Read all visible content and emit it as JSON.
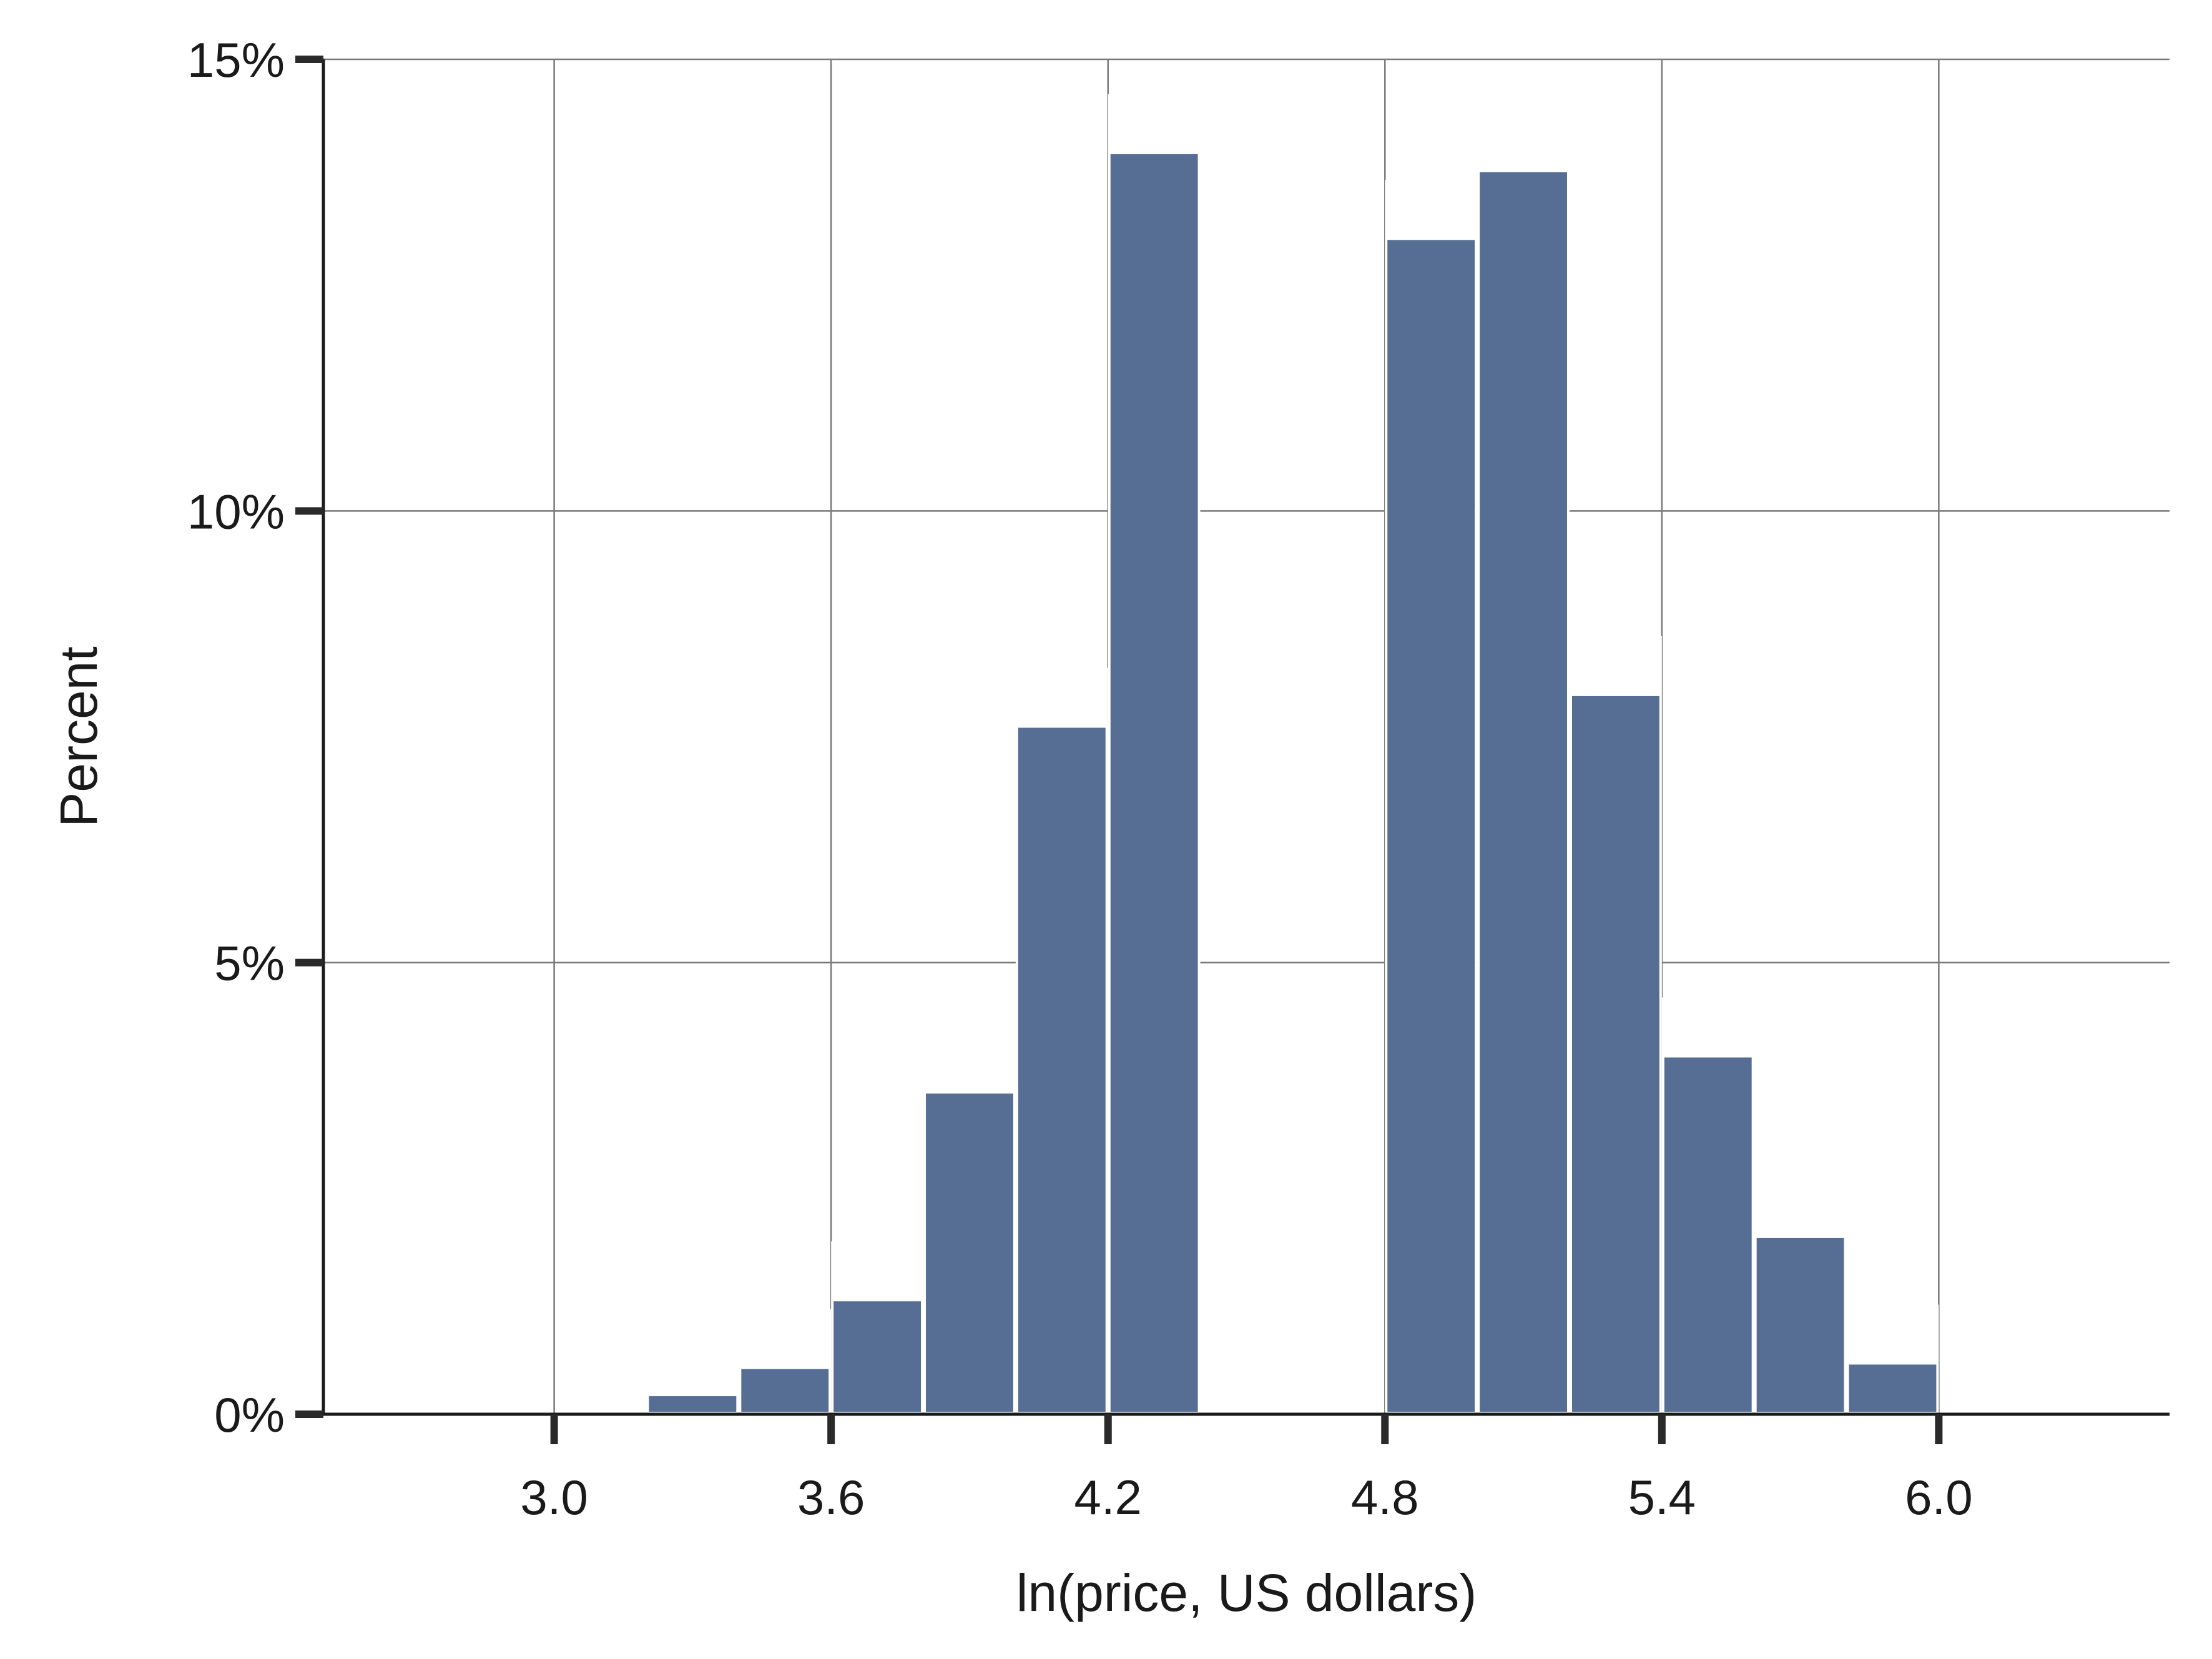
{
  "chart_data": {
    "type": "bar",
    "xlabel": "ln(price, US dollars)",
    "ylabel": "Percent",
    "xlim": [
      2.5,
      6.5
    ],
    "ylim": [
      0,
      15
    ],
    "x_ticks": [
      3.0,
      3.6,
      4.2,
      4.8,
      5.4,
      6.0
    ],
    "x_tick_labels": [
      "3.0",
      "3.6",
      "4.2",
      "4.8",
      "5.4",
      "6.0"
    ],
    "y_ticks": [
      0,
      5,
      10,
      15
    ],
    "y_tick_labels": [
      "0%",
      "5%",
      "10%",
      "15%"
    ],
    "bin_width": 0.2,
    "bins": [
      {
        "x0": 3.2,
        "x1": 3.4,
        "value": 0.2
      },
      {
        "x0": 3.4,
        "x1": 3.6,
        "value": 0.5
      },
      {
        "x0": 3.6,
        "x1": 3.8,
        "value": 1.25
      },
      {
        "x0": 3.8,
        "x1": 4.0,
        "value": 3.55
      },
      {
        "x0": 4.0,
        "x1": 4.2,
        "value": 7.6
      },
      {
        "x0": 4.2,
        "x1": 4.4,
        "value": 13.95
      },
      {
        "x0": 4.8,
        "x1": 5.0,
        "value": 13.0
      },
      {
        "x0": 5.0,
        "x1": 5.2,
        "value": 13.75
      },
      {
        "x0": 5.2,
        "x1": 5.4,
        "value": 7.95
      },
      {
        "x0": 5.4,
        "x1": 5.6,
        "value": 3.95
      },
      {
        "x0": 5.6,
        "x1": 5.8,
        "value": 1.95
      },
      {
        "x0": 5.8,
        "x1": 6.0,
        "value": 0.55
      }
    ],
    "grid": true,
    "colors": {
      "bar": "#566e93",
      "grid": "#7a7a7a",
      "axis": "#1a1a1a"
    }
  }
}
